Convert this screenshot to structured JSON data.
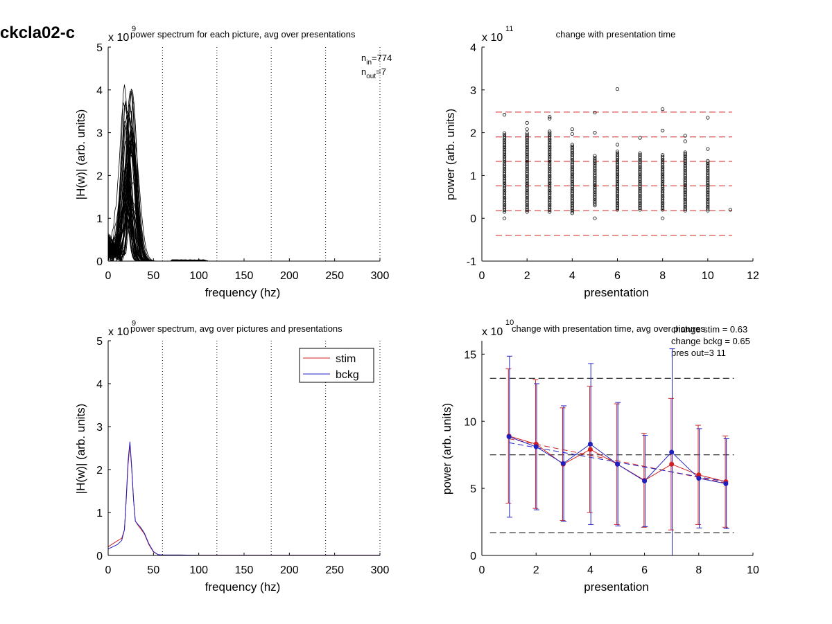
{
  "page_label": "ckcla02-c",
  "chart_data": [
    {
      "id": "tl",
      "type": "line",
      "title": "power spectrum for each picture, avg over presentations",
      "xlabel": "frequency (hz)",
      "ylabel": "|H(w)| (arb. units)",
      "exponent": "9",
      "xlim": [
        0,
        300
      ],
      "ylim": [
        0,
        5
      ],
      "xticks": [
        0,
        50,
        100,
        150,
        200,
        250,
        300
      ],
      "yticks": [
        0,
        1,
        2,
        3,
        4,
        5
      ],
      "vlines": [
        60,
        120,
        180,
        240,
        300
      ],
      "annotation": {
        "n_in": "774",
        "n_out": "7"
      },
      "series_summary": {
        "count": 60,
        "peak_x": 23,
        "peak_range": [
          1.2,
          4.2
        ],
        "base_range": [
          0.1,
          1.0
        ],
        "color": "#000000"
      }
    },
    {
      "id": "tr",
      "type": "scatter",
      "title": "change with presentation time",
      "xlabel": "presentation",
      "ylabel": "power (arb. units)",
      "exponent": "11",
      "xlim": [
        0,
        12
      ],
      "ylim": [
        -1,
        4
      ],
      "xticks": [
        0,
        2,
        4,
        6,
        8,
        10,
        12
      ],
      "yticks": [
        -1,
        0,
        1,
        2,
        3,
        4
      ],
      "hlines": [
        2.48,
        1.9,
        1.33,
        0.76,
        0.18,
        -0.4,
        -1.0
      ],
      "hline_color": "#d02020",
      "columns": [
        {
          "x": 1,
          "ymin": 0.15,
          "ymax": 2.0,
          "extra": [
            2.42,
            0.0
          ]
        },
        {
          "x": 2,
          "ymin": 0.15,
          "ymax": 2.0,
          "extra": [
            2.23,
            2.08
          ]
        },
        {
          "x": 3,
          "ymin": 0.15,
          "ymax": 2.05,
          "extra": [
            2.37,
            2.33
          ]
        },
        {
          "x": 4,
          "ymin": 0.12,
          "ymax": 1.75,
          "extra": [
            2.08,
            1.97
          ]
        },
        {
          "x": 5,
          "ymin": 0.3,
          "ymax": 1.5,
          "extra": [
            2.47,
            2.0,
            0.0
          ]
        },
        {
          "x": 6,
          "ymin": 0.2,
          "ymax": 1.6,
          "extra": [
            3.02,
            1.72
          ]
        },
        {
          "x": 7,
          "ymin": 0.2,
          "ymax": 1.55,
          "extra": [
            1.88
          ]
        },
        {
          "x": 8,
          "ymin": 0.2,
          "ymax": 1.5,
          "extra": [
            2.55,
            2.05,
            0.0
          ]
        },
        {
          "x": 9,
          "ymin": 0.18,
          "ymax": 1.55,
          "extra": [
            1.93,
            1.8
          ]
        },
        {
          "x": 10,
          "ymin": 0.18,
          "ymax": 1.35,
          "extra": [
            2.35,
            1.62
          ]
        },
        {
          "x": 11,
          "ymin": 0.2,
          "ymax": 0.2,
          "extra": []
        }
      ]
    },
    {
      "id": "bl",
      "type": "line",
      "title": "power spectrum, avg over pictures and presentations",
      "xlabel": "frequency (hz)",
      "ylabel": "|H(w)| (arb. units)",
      "exponent": "9",
      "xlim": [
        0,
        300
      ],
      "ylim": [
        0,
        5
      ],
      "xticks": [
        0,
        50,
        100,
        150,
        200,
        250,
        300
      ],
      "yticks": [
        0,
        1,
        2,
        3,
        4,
        5
      ],
      "vlines": [
        60,
        120,
        180,
        240,
        300
      ],
      "legend": [
        {
          "name": "stim",
          "color": "#d02020"
        },
        {
          "name": "bckg",
          "color": "#2020c0"
        }
      ],
      "legend_position": "top-right",
      "series": [
        {
          "name": "stim",
          "color": "#d02020",
          "x": [
            0,
            5,
            10,
            15,
            18,
            20,
            22,
            24,
            26,
            28,
            30,
            33,
            36,
            40,
            45,
            50,
            55,
            60,
            80,
            100,
            150,
            200,
            250,
            300
          ],
          "y": [
            0.2,
            0.27,
            0.34,
            0.4,
            0.6,
            1.3,
            2.1,
            2.6,
            2.0,
            1.3,
            0.8,
            0.7,
            0.62,
            0.5,
            0.25,
            0.08,
            0.02,
            0.01,
            0.01,
            0.005,
            0.005,
            0.005,
            0.005,
            0.005
          ]
        },
        {
          "name": "bckg",
          "color": "#2020c0",
          "x": [
            0,
            5,
            10,
            15,
            18,
            20,
            22,
            24,
            26,
            28,
            30,
            33,
            36,
            40,
            45,
            50,
            55,
            60,
            80,
            100,
            150,
            200,
            250,
            300
          ],
          "y": [
            0.15,
            0.2,
            0.25,
            0.35,
            0.6,
            1.35,
            2.2,
            2.65,
            2.05,
            1.3,
            0.8,
            0.72,
            0.65,
            0.52,
            0.27,
            0.09,
            0.02,
            0.01,
            0.01,
            0.005,
            0.005,
            0.005,
            0.005,
            0.005
          ]
        }
      ]
    },
    {
      "id": "br",
      "type": "line",
      "title": "change with presentation time, avg over pictures",
      "xlabel": "presentation",
      "ylabel": "power (arb. units)",
      "exponent": "10",
      "xlim": [
        0,
        10
      ],
      "ylim": [
        0,
        16
      ],
      "xticks": [
        0,
        2,
        4,
        6,
        8,
        10
      ],
      "yticks": [
        0,
        5,
        10,
        15
      ],
      "hlines": [
        13.2,
        7.5,
        1.7
      ],
      "annotations": [
        "change stim = 0.63",
        "change bckg = 0.65",
        "pres out=3 11"
      ],
      "series": [
        {
          "name": "stim",
          "color": "#d02020",
          "x": [
            1,
            2,
            3,
            4,
            5,
            6,
            7,
            8,
            9
          ],
          "y": [
            8.9,
            8.3,
            6.8,
            7.9,
            6.8,
            5.6,
            6.8,
            6.0,
            5.5
          ],
          "err": [
            5.0,
            4.8,
            4.2,
            4.7,
            4.5,
            3.5,
            4.9,
            3.7,
            3.4
          ],
          "trend": [
            8.7,
            5.4
          ]
        },
        {
          "name": "bckg",
          "color": "#2020c0",
          "x": [
            1,
            2,
            3,
            4,
            5,
            6,
            7,
            8,
            9
          ],
          "y": [
            8.85,
            8.1,
            6.85,
            8.3,
            6.8,
            5.55,
            7.7,
            5.75,
            5.35
          ],
          "err": [
            6.0,
            4.7,
            4.3,
            6.0,
            4.6,
            3.4,
            7.7,
            3.7,
            3.35
          ],
          "trend": [
            8.4,
            5.5
          ]
        }
      ]
    }
  ]
}
